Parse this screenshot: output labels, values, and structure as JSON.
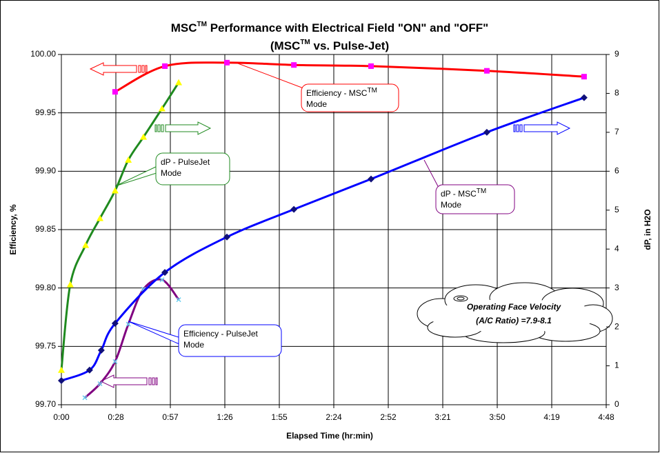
{
  "chart_data": {
    "type": "line",
    "title": {
      "text": "MSC",
      "sup": "TM",
      "rest": " Performance with Electrical Field \"ON\" and \"OFF\""
    },
    "subtitle": {
      "text": "(MSC",
      "sup": "TM",
      "rest": " vs. Pulse-Jet)"
    },
    "x_label": "Elapsed Time (hr:min)",
    "y_label": "Efficiency, %",
    "y2_label": "dP, in H2O",
    "xlim": [
      0,
      288
    ],
    "xticks": [
      {
        "value": 0,
        "label": "0:00"
      },
      {
        "value": 28.8,
        "label": "0:28"
      },
      {
        "value": 57.6,
        "label": "0:57"
      },
      {
        "value": 86.4,
        "label": "1:26"
      },
      {
        "value": 115.2,
        "label": "1:55"
      },
      {
        "value": 144,
        "label": "2:24"
      },
      {
        "value": 172.8,
        "label": "2:52"
      },
      {
        "value": 201.6,
        "label": "3:21"
      },
      {
        "value": 230.4,
        "label": "3:50"
      },
      {
        "value": 259.2,
        "label": "4:19"
      },
      {
        "value": 288,
        "label": "4:48"
      }
    ],
    "ylim": [
      99.7,
      100.0
    ],
    "yticks": [
      {
        "value": 99.7,
        "label": "99.70"
      },
      99.75,
      {
        "value": 99.8,
        "label": "99.80"
      },
      99.85,
      {
        "value": 99.9,
        "label": "99.90"
      },
      99.95,
      {
        "value": 100.0,
        "label": "100.00"
      }
    ],
    "y2lim": [
      0,
      9
    ],
    "y2ticks": [
      0,
      1,
      2,
      3,
      4,
      5,
      6,
      7,
      8,
      9
    ],
    "grid": true,
    "series": [
      {
        "color": "#ff0000",
        "marker": "square",
        "marker_color": "#ff00ff",
        "x": [
          28.4,
          54.7,
          87.5,
          122.9,
          163.7,
          224.9,
          276.3
        ],
        "values": [
          99.968,
          99.99,
          99.993,
          99.991,
          99.99,
          99.986,
          99.981
        ]
      },
      {
        "color": "#1f8a1f",
        "marker": "triangle",
        "marker_color": "#ffff00",
        "axis": "y2",
        "x": [
          0,
          4.7,
          12.8,
          20.4,
          28.4,
          35.4,
          43.4,
          53.2,
          62.0
        ],
        "values": [
          0.89,
          3.09,
          4.1,
          4.79,
          5.5,
          6.29,
          6.88,
          7.61,
          8.28
        ]
      },
      {
        "color": "#800080",
        "marker": "x",
        "marker_color": "#66ccee",
        "x": [
          12.4,
          20.4,
          28.4,
          35.4,
          43.4,
          53.2,
          62.0
        ],
        "values": [
          99.706,
          99.718,
          99.737,
          99.769,
          99.799,
          99.807,
          99.79
        ]
      },
      {
        "color": "#0000ff",
        "marker": "diamond",
        "marker_color": "#10107a",
        "axis": "y2",
        "x": [
          0,
          14.9,
          21.1,
          28.4,
          54.7,
          87.5,
          122.9,
          163.7,
          224.9,
          276.3
        ],
        "values": [
          0.62,
          0.89,
          1.4,
          2.09,
          3.4,
          4.31,
          5.02,
          5.8,
          7.0,
          7.89
        ]
      }
    ],
    "annotations": [
      {
        "line1": "Efficiency - MSC",
        "sup": "TM",
        "line2": "Mode"
      },
      {
        "line1": "dP  - PulseJet",
        "line2": "Mode"
      },
      {
        "line1": "dP  - MSC",
        "sup": "TM",
        "line2": "Mode"
      },
      {
        "line1": "Efficiency - PulseJet",
        "line2": "Mode"
      }
    ],
    "note": {
      "line1": "Operating Face Velocity",
      "line2": "(A/C Ratio) =7.9-8.1"
    }
  }
}
